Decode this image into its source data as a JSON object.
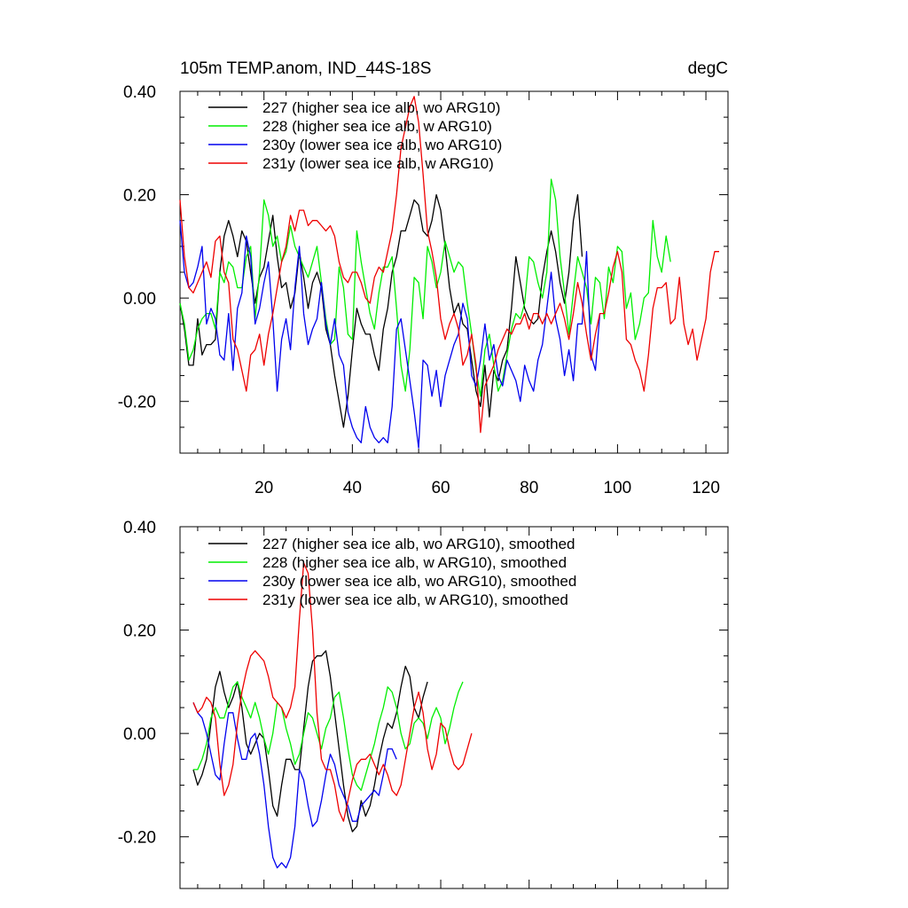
{
  "chart_data": [
    {
      "type": "line",
      "title": "105m TEMP.anom, IND_44S-18S",
      "units": "degC",
      "xlabel": "",
      "ylabel": "",
      "xlim": [
        1,
        125
      ],
      "ylim": [
        -0.3,
        0.4
      ],
      "yticks": [
        -0.2,
        0.0,
        0.2,
        0.4
      ],
      "ytick_labels": [
        "-0.20",
        "0.00",
        "0.20",
        "0.40"
      ],
      "xticks": [
        20,
        40,
        60,
        80,
        100,
        120
      ],
      "xtick_labels": [
        "20",
        "40",
        "60",
        "80",
        "100",
        "120"
      ],
      "show_xtick_labels": true,
      "legend": "top-left",
      "series": [
        {
          "name": "227 (higher sea ice alb, wo ARG10)",
          "color": "#000000",
          "x_start": 1,
          "values": [
            -0.01,
            -0.06,
            -0.13,
            -0.13,
            -0.04,
            -0.11,
            -0.09,
            -0.09,
            -0.08,
            0.05,
            0.12,
            0.15,
            0.12,
            0.08,
            0.13,
            0.11,
            0.05,
            -0.01,
            0.04,
            0.06,
            0.11,
            0.16,
            0.08,
            0.02,
            0.03,
            -0.02,
            0.01,
            0.09,
            0.04,
            -0.02,
            0.03,
            0.05,
            0.02,
            -0.06,
            -0.09,
            -0.15,
            -0.2,
            -0.25,
            -0.19,
            -0.1,
            -0.02,
            -0.05,
            -0.07,
            -0.07,
            -0.11,
            -0.14,
            -0.06,
            -0.02,
            0.05,
            0.08,
            0.13,
            0.13,
            0.16,
            0.19,
            0.18,
            0.13,
            0.12,
            0.15,
            0.2,
            0.17,
            0.1,
            0.02,
            -0.03,
            -0.01,
            -0.05,
            -0.06,
            -0.12,
            -0.18,
            -0.21,
            -0.13,
            -0.23,
            -0.14,
            -0.16,
            -0.12,
            -0.1,
            -0.02,
            0.08,
            0.03,
            -0.02,
            -0.04,
            -0.05,
            -0.04,
            0.04,
            0.09,
            0.13,
            0.09,
            0.03,
            -0.01,
            0.05,
            0.15,
            0.2,
            0.08
          ]
        },
        {
          "name": "228 (higher sea ice alb, w ARG10)",
          "color": "#00ee00",
          "x_start": 1,
          "values": [
            -0.01,
            -0.05,
            -0.12,
            -0.1,
            -0.06,
            -0.04,
            -0.03,
            -0.03,
            -0.06,
            0.05,
            0.03,
            0.07,
            0.06,
            0.02,
            0.02,
            0.08,
            0.1,
            -0.04,
            0.05,
            0.19,
            0.16,
            0.1,
            0.12,
            0.07,
            0.09,
            0.14,
            0.1,
            0.08,
            0.06,
            0.04,
            0.07,
            0.1,
            0.03,
            -0.04,
            -0.09,
            -0.08,
            0.06,
            0.02,
            -0.07,
            -0.08,
            0.13,
            0.07,
            0.02,
            -0.03,
            -0.06,
            0.01,
            0.06,
            0.06,
            0.08,
            -0.02,
            -0.13,
            -0.18,
            -0.1,
            0.04,
            0.03,
            -0.04,
            0.1,
            0.07,
            0.02,
            0.05,
            0.11,
            0.08,
            0.05,
            0.07,
            0.06,
            -0.01,
            -0.07,
            -0.14,
            -0.19,
            -0.1,
            -0.07,
            -0.13,
            -0.18,
            -0.16,
            -0.11,
            -0.06,
            -0.03,
            -0.04,
            -0.01,
            0.08,
            0.07,
            0.03,
            0.0,
            0.05,
            0.23,
            0.19,
            0.08,
            0.01,
            -0.07,
            0.01,
            0.08,
            0.05,
            0.02,
            -0.05,
            0.04,
            0.03,
            -0.04,
            0.06,
            0.03,
            0.1,
            0.09,
            -0.02,
            0.01,
            -0.08,
            -0.05,
            0.0,
            0.01,
            0.15,
            0.08,
            0.05,
            0.12,
            0.07
          ]
        },
        {
          "name": "230y (lower sea ice alb, wo ARG10)",
          "color": "#0000ee",
          "x_start": 1,
          "values": [
            0.15,
            0.05,
            0.02,
            0.03,
            0.06,
            0.1,
            -0.05,
            -0.02,
            -0.04,
            -0.11,
            -0.12,
            -0.03,
            -0.14,
            -0.02,
            0.01,
            0.12,
            0.08,
            -0.05,
            -0.02,
            0.03,
            0.07,
            -0.04,
            -0.18,
            -0.08,
            -0.04,
            -0.1,
            0.02,
            0.1,
            -0.03,
            -0.09,
            -0.06,
            -0.04,
            0.03,
            -0.05,
            -0.09,
            -0.04,
            -0.11,
            -0.13,
            -0.22,
            -0.25,
            -0.27,
            -0.28,
            -0.21,
            -0.25,
            -0.27,
            -0.28,
            -0.27,
            -0.28,
            -0.21,
            -0.06,
            -0.04,
            -0.1,
            -0.16,
            -0.22,
            -0.29,
            -0.12,
            -0.13,
            -0.19,
            -0.14,
            -0.21,
            -0.15,
            -0.12,
            -0.09,
            -0.07,
            -0.01,
            -0.04,
            -0.15,
            -0.17,
            -0.12,
            -0.05,
            -0.12,
            -0.09,
            -0.15,
            -0.17,
            -0.12,
            -0.14,
            -0.16,
            -0.2,
            -0.13,
            -0.16,
            -0.18,
            -0.12,
            -0.09,
            -0.02,
            0.05,
            -0.04,
            -0.08,
            -0.15,
            -0.1,
            -0.16,
            -0.05,
            -0.05,
            0.09,
            -0.11,
            -0.14,
            -0.03
          ]
        },
        {
          "name": "231y (lower sea ice alb, w ARG10)",
          "color": "#ee0000",
          "x_start": 1,
          "values": [
            0.19,
            0.08,
            0.02,
            0.01,
            0.03,
            0.05,
            0.07,
            0.04,
            0.11,
            0.12,
            0.05,
            0.03,
            -0.08,
            -0.1,
            -0.14,
            -0.18,
            -0.11,
            -0.1,
            -0.07,
            -0.13,
            -0.07,
            -0.03,
            0.02,
            0.07,
            0.1,
            0.16,
            0.13,
            0.17,
            0.17,
            0.14,
            0.15,
            0.15,
            0.14,
            0.13,
            0.14,
            0.12,
            0.07,
            0.04,
            0.03,
            0.05,
            0.05,
            0.03,
            0.0,
            -0.01,
            0.04,
            0.06,
            0.05,
            0.09,
            0.13,
            0.2,
            0.29,
            0.33,
            0.37,
            0.39,
            0.34,
            0.24,
            0.13,
            0.09,
            0.04,
            -0.04,
            -0.08,
            -0.05,
            -0.03,
            -0.06,
            -0.13,
            -0.11,
            -0.07,
            -0.13,
            -0.26,
            -0.17,
            -0.15,
            -0.13,
            -0.1,
            -0.08,
            -0.06,
            -0.07,
            -0.05,
            -0.05,
            -0.03,
            -0.06,
            -0.03,
            -0.03,
            -0.05,
            -0.03,
            -0.05,
            -0.03,
            -0.01,
            -0.04,
            -0.08,
            -0.03,
            0.03,
            -0.01,
            -0.07,
            -0.12,
            -0.07,
            -0.03,
            -0.03,
            0.01,
            0.06,
            0.09,
            0.05,
            -0.08,
            -0.09,
            -0.12,
            -0.14,
            -0.18,
            -0.11,
            -0.02,
            0.02,
            0.02,
            0.03,
            -0.05,
            -0.04,
            0.04,
            -0.05,
            -0.09,
            -0.06,
            -0.12,
            -0.08,
            -0.04,
            0.05,
            0.09,
            0.09
          ]
        }
      ]
    },
    {
      "type": "line",
      "title": "",
      "xlabel": "",
      "ylabel": "",
      "xlim": [
        1,
        125
      ],
      "ylim": [
        -0.3,
        0.4
      ],
      "yticks": [
        -0.2,
        0.0,
        0.2,
        0.4
      ],
      "ytick_labels": [
        "-0.20",
        "0.00",
        "0.20",
        "0.40"
      ],
      "xticks": [
        20,
        40,
        60,
        80,
        100,
        120
      ],
      "xtick_labels": [],
      "show_xtick_labels": false,
      "legend": "top-left",
      "series": [
        {
          "name": "227 (higher sea ice alb, wo ARG10), smoothed",
          "color": "#000000",
          "x_start": 4,
          "values": [
            -0.07,
            -0.1,
            -0.08,
            -0.05,
            0.02,
            0.09,
            0.12,
            0.08,
            0.05,
            0.07,
            0.1,
            0.05,
            -0.02,
            -0.04,
            -0.02,
            0.0,
            -0.01,
            -0.07,
            -0.14,
            -0.16,
            -0.1,
            -0.05,
            -0.05,
            -0.07,
            -0.07,
            0.01,
            0.09,
            0.14,
            0.15,
            0.15,
            0.16,
            0.11,
            0.04,
            -0.03,
            -0.1,
            -0.16,
            -0.19,
            -0.18,
            -0.13,
            -0.16,
            -0.14,
            -0.1,
            -0.05,
            -0.01,
            0.02,
            0.01,
            0.04,
            0.09,
            0.13,
            0.11,
            0.05,
            0.03,
            0.07,
            0.1
          ]
        },
        {
          "name": "228 (higher sea ice alb, w ARG10), smoothed",
          "color": "#00ee00",
          "x_start": 4,
          "values": [
            -0.07,
            -0.07,
            -0.05,
            -0.02,
            0.03,
            0.05,
            0.03,
            0.03,
            0.06,
            0.09,
            0.1,
            0.07,
            0.05,
            0.03,
            0.06,
            0.03,
            -0.01,
            -0.04,
            0.0,
            0.06,
            0.05,
            0.01,
            -0.02,
            -0.06,
            -0.04,
            0.0,
            0.04,
            0.03,
            0.0,
            -0.03,
            0.01,
            0.03,
            0.07,
            0.08,
            0.03,
            -0.03,
            -0.08,
            -0.1,
            -0.11,
            -0.08,
            -0.05,
            -0.02,
            0.02,
            0.05,
            0.09,
            0.08,
            0.05,
            0.0,
            -0.03,
            -0.02,
            0.02,
            0.03,
            0.02,
            -0.01,
            0.03,
            0.05,
            0.03,
            -0.02,
            0.01,
            0.05,
            0.08,
            0.1
          ]
        },
        {
          "name": "230y (lower sea ice alb, wo ARG10), smoothed",
          "color": "#0000ee",
          "x_start": 4,
          "values": [
            0.06,
            0.04,
            0.03,
            0.0,
            -0.04,
            -0.08,
            -0.09,
            -0.02,
            0.04,
            0.04,
            -0.01,
            -0.05,
            -0.05,
            -0.01,
            0.0,
            -0.04,
            -0.1,
            -0.18,
            -0.24,
            -0.26,
            -0.25,
            -0.26,
            -0.24,
            -0.18,
            -0.07,
            -0.09,
            -0.14,
            -0.18,
            -0.17,
            -0.13,
            -0.08,
            -0.04,
            -0.06,
            -0.1,
            -0.12,
            -0.14,
            -0.17,
            -0.17,
            -0.14,
            -0.13,
            -0.12,
            -0.11,
            -0.12,
            -0.08,
            -0.03,
            -0.03,
            -0.05
          ]
        },
        {
          "name": "231y (lower sea ice alb, w ARG10), smoothed",
          "color": "#ee0000",
          "x_start": 4,
          "values": [
            0.06,
            0.04,
            0.05,
            0.07,
            0.06,
            0.03,
            -0.06,
            -0.12,
            -0.1,
            -0.06,
            0.02,
            0.08,
            0.12,
            0.15,
            0.16,
            0.15,
            0.14,
            0.11,
            0.07,
            0.06,
            0.05,
            0.03,
            0.05,
            0.09,
            0.22,
            0.33,
            0.31,
            0.2,
            0.04,
            -0.05,
            -0.07,
            -0.07,
            -0.1,
            -0.15,
            -0.17,
            -0.13,
            -0.09,
            -0.06,
            -0.05,
            -0.05,
            -0.04,
            -0.06,
            -0.08,
            -0.06,
            -0.08,
            -0.11,
            -0.12,
            -0.1,
            -0.05,
            0.0,
            0.05,
            0.08,
            0.04,
            -0.03,
            -0.07,
            -0.04,
            0.02,
            0.01,
            -0.03,
            -0.06,
            -0.07,
            -0.06,
            -0.03,
            0.0
          ]
        }
      ]
    }
  ]
}
